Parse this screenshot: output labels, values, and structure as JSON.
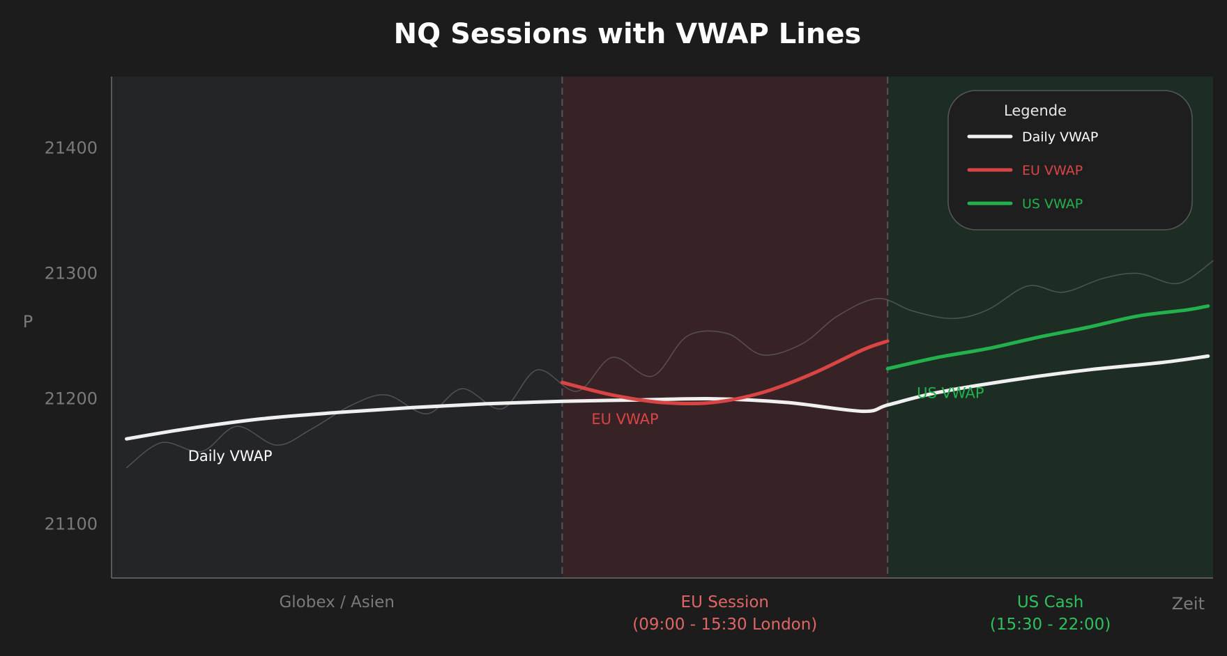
{
  "chart_data": {
    "type": "line",
    "title": "NQ Sessions with VWAP Lines",
    "xlabel": "Zeit",
    "ylabel": "P",
    "ylim": [
      21057,
      21457
    ],
    "xlim": [
      0,
      22
    ],
    "yticks": [
      21100,
      21200,
      21300,
      21400
    ],
    "grid": false,
    "legend": {
      "title": "Legende",
      "placement": "top-right",
      "entries": [
        {
          "label": "Daily VWAP",
          "color": "#f0f0f0"
        },
        {
          "label": "EU VWAP",
          "color": "#d94545"
        },
        {
          "label": "US VWAP",
          "color": "#22b14c"
        }
      ]
    },
    "sessions": [
      {
        "label": "Globex / Asien",
        "line2": "",
        "start": 0,
        "end": 9,
        "fill": "#232529",
        "color": "#7a7a7a"
      },
      {
        "label": "EU Session",
        "line2": "(09:00 - 15:30 London)",
        "start": 9,
        "end": 15.5,
        "fill": "#372325",
        "color": "#e06565"
      },
      {
        "label": "US Cash",
        "line2": "(15:30 - 22:00)",
        "start": 15.5,
        "end": 22,
        "fill": "#1d2d24",
        "color": "#2ec05c"
      }
    ],
    "series": [
      {
        "name": "Daily VWAP",
        "color": "#f0f0f0",
        "label": "Daily VWAP",
        "x": [
          0.3,
          1.5,
          3.0,
          4.5,
          6.0,
          7.5,
          9.0,
          10.5,
          12.0,
          13.5,
          15.0,
          15.5,
          16.5,
          18.0,
          19.5,
          21.0,
          21.9
        ],
        "y": [
          21168,
          21176,
          21184,
          21189,
          21193,
          21196,
          21198,
          21199,
          21200,
          21197,
          21190,
          21195,
          21205,
          21215,
          21223,
          21229,
          21234
        ]
      },
      {
        "name": "EU VWAP",
        "color": "#d94545",
        "label": "EU VWAP",
        "x": [
          9.0,
          10.0,
          11.0,
          12.0,
          13.0,
          14.0,
          15.0,
          15.5
        ],
        "y": [
          21213,
          21203,
          21197,
          21197,
          21205,
          21220,
          21239,
          21246
        ]
      },
      {
        "name": "US VWAP",
        "color": "#22b14c",
        "label": "US VWAP",
        "x": [
          15.5,
          16.5,
          17.5,
          18.5,
          19.5,
          20.5,
          21.5,
          21.9
        ],
        "y": [
          21224,
          21233,
          21240,
          21249,
          21257,
          21266,
          21271,
          21274
        ]
      },
      {
        "name": "",
        "color": "#5e5e5e",
        "label": "",
        "x": [
          0.3,
          1.0,
          1.8,
          2.5,
          3.3,
          4.0,
          4.8,
          5.5,
          6.3,
          7.0,
          7.8,
          8.5,
          9.3,
          10.0,
          10.8,
          11.5,
          12.3,
          13.0,
          13.8,
          14.5,
          15.3,
          16.0,
          16.8,
          17.5,
          18.3,
          19.0,
          19.8,
          20.5,
          21.3,
          22.0
        ],
        "y": [
          21145,
          21165,
          21158,
          21178,
          21163,
          21176,
          21195,
          21203,
          21188,
          21208,
          21192,
          21223,
          21206,
          21233,
          21218,
          21250,
          21252,
          21235,
          21244,
          21266,
          21280,
          21270,
          21264,
          21271,
          21290,
          21285,
          21296,
          21300,
          21292,
          21310
        ]
      }
    ]
  },
  "colors": {
    "background": "#1c1c1c",
    "axis": "#5a5a5a",
    "divider": "#555555",
    "legend_bg": "#1e1e1e",
    "legend_border": "#55595c"
  }
}
